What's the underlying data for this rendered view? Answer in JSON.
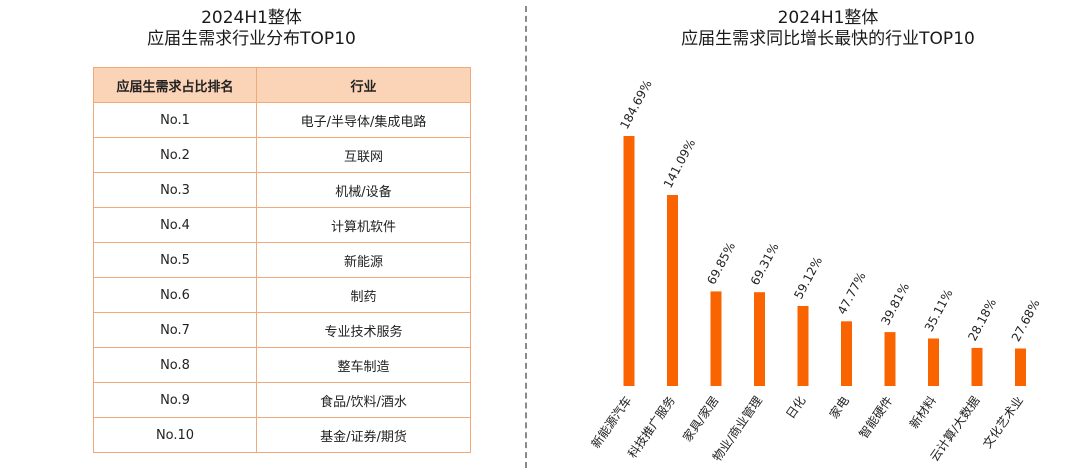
{
  "left": {
    "title_line1": "2024H1整体",
    "title_line2": "应届生需求行业分布TOP10",
    "table": {
      "headers": [
        "应届生需求占比排名",
        "行业"
      ],
      "rows": [
        [
          "No.1",
          "电子/半导体/集成电路"
        ],
        [
          "No.2",
          "互联网"
        ],
        [
          "No.3",
          "机械/设备"
        ],
        [
          "No.4",
          "计算机软件"
        ],
        [
          "No.5",
          "新能源"
        ],
        [
          "No.6",
          "制药"
        ],
        [
          "No.7",
          "专业技术服务"
        ],
        [
          "No.8",
          "整车制造"
        ],
        [
          "No.9",
          "食品/饮料/酒水"
        ],
        [
          "No.10",
          "基金/证券/期货"
        ]
      ]
    }
  },
  "right": {
    "title_line1": "2024H1整体",
    "title_line2": "应届生需求同比增长最快的行业TOP10"
  },
  "chart_data": {
    "type": "bar",
    "title": "2024H1整体 应届生需求同比增长最快的行业TOP10",
    "categories": [
      "新能源汽车",
      "科技推广服务",
      "家具/家居",
      "物业/商业管理",
      "日化",
      "家电",
      "智能硬件",
      "新材料",
      "云计算/大数据",
      "文化艺术业"
    ],
    "values": [
      184.69,
      141.09,
      69.85,
      69.31,
      59.12,
      47.77,
      39.81,
      35.11,
      28.18,
      27.68
    ],
    "value_labels": [
      "184.69%",
      "141.09%",
      "69.85%",
      "69.31%",
      "59.12%",
      "47.77%",
      "39.81%",
      "35.11%",
      "28.18%",
      "27.68%"
    ],
    "bar_color": "#fa6400",
    "grid": false,
    "legend": "none"
  }
}
